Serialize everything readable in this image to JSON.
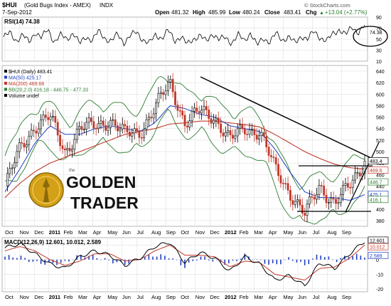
{
  "header": {
    "symbol": "$HUI",
    "name": "(Gold Bugs Index - AMEX)",
    "exchange": "INDX",
    "date": "7-Sep-2012",
    "open_label": "Open",
    "open": "481.32",
    "high_label": "High",
    "high": "485.99",
    "low_label": "Low",
    "low": "480.24",
    "close_label": "Close",
    "close": "483.41",
    "chg_label": "Chg",
    "chg": "+13.04 (+2.77%)",
    "chg_arrow": "▲",
    "watermark": "© StockCharts.com"
  },
  "rsi_panel": {
    "label": "RSI(14) 74.38",
    "ticks": [
      "90",
      "70",
      "50",
      "30",
      "10"
    ],
    "last_value_label": "74.38"
  },
  "price_panel": {
    "legend": [
      {
        "text": "$HUI (Daily) 483.41",
        "color": "#000000"
      },
      {
        "text": "MA(50) 425.17",
        "color": "#1f3fbf"
      },
      {
        "text": "MA(200) 469.68",
        "color": "#c0392b"
      },
      {
        "text": "BB(20,2.0) 416.18 - 446.75 - 477.33",
        "color": "#2e7d32"
      },
      {
        "text": "Volume undef",
        "color": "#000000"
      }
    ],
    "ticks": [
      "640",
      "620",
      "600",
      "580",
      "560",
      "540",
      "520",
      "500",
      "480",
      "460",
      "440",
      "420",
      "400",
      "380"
    ],
    "right_labels": [
      "483.4",
      "469.6",
      "446.7",
      "425.1",
      "416.1"
    ],
    "logo_top": "GOLDEN",
    "logo_bottom": "TRADER",
    "logo_small": "the"
  },
  "macd_panel": {
    "label": "MACD(12,26,9) 12.601, 10.012, 2.589",
    "ticks": [
      "10",
      "0",
      "-10",
      "-20"
    ],
    "right_labels": [
      "12.601",
      "10.012",
      "2.589"
    ]
  },
  "x_axis": {
    "labels": [
      "Oct",
      "Nov",
      "Dec",
      "2011",
      "Feb",
      "Mar",
      "Apr",
      "May",
      "Jun",
      "Jul",
      "Aug",
      "Sep",
      "Oct",
      "Nov",
      "Dec",
      "2012",
      "Feb",
      "Mar",
      "Apr",
      "May",
      "Jun",
      "Jul",
      "Aug",
      "Sep"
    ]
  },
  "colors": {
    "price": "#000000",
    "up_candle": "#000000",
    "down_candle": "#c0392b",
    "ma50": "#1f3fbf",
    "ma200": "#c0392b",
    "bollinger": "#2e7d32",
    "macd": "#000000",
    "signal": "#c0392b",
    "histogram": "#1f3fbf",
    "grid": "#d9d9d9",
    "logo_gold": "#d4a017"
  },
  "chart_data": [
    {
      "type": "line",
      "title": "RSI(14) 74.38",
      "series": [
        {
          "name": "RSI(14)",
          "values": [
            54,
            61,
            47,
            58,
            44,
            63,
            52,
            68,
            45,
            57,
            50,
            62,
            41,
            55,
            48,
            64,
            52,
            46,
            59,
            44,
            56,
            63,
            49,
            42,
            58,
            52,
            66,
            47,
            55,
            40,
            51,
            57,
            45,
            61,
            49,
            53,
            43,
            58,
            47,
            62,
            38,
            52,
            45,
            60,
            48,
            55,
            42,
            56,
            50,
            64,
            53,
            46,
            60,
            68,
            57,
            73,
            62,
            74.38
          ]
        }
      ],
      "ylim": [
        10,
        90
      ]
    },
    {
      "type": "line",
      "title": "$HUI (Daily) 483.41",
      "x": [
        "2010-09",
        "2010-10",
        "2010-11",
        "2010-12",
        "2011-01",
        "2011-02",
        "2011-03",
        "2011-04",
        "2011-05",
        "2011-06",
        "2011-07",
        "2011-08",
        "2011-09",
        "2011-10",
        "2011-11",
        "2011-12",
        "2012-01",
        "2012-02",
        "2012-03",
        "2012-04",
        "2012-05",
        "2012-06",
        "2012-07",
        "2012-08",
        "2012-09"
      ],
      "series": [
        {
          "name": "$HUI (Daily)",
          "values": [
            440,
            505,
            545,
            560,
            500,
            540,
            545,
            555,
            530,
            535,
            575,
            620,
            550,
            570,
            560,
            520,
            540,
            535,
            470,
            430,
            390,
            440,
            410,
            440,
            483.41
          ]
        },
        {
          "name": "MA(50)",
          "values": [
            430,
            470,
            515,
            545,
            530,
            530,
            540,
            545,
            540,
            535,
            550,
            580,
            575,
            565,
            560,
            545,
            540,
            535,
            505,
            465,
            430,
            420,
            420,
            415,
            425.17
          ]
        },
        {
          "name": "MA(200)",
          "values": [
            420,
            445,
            465,
            480,
            490,
            500,
            510,
            520,
            530,
            535,
            540,
            548,
            550,
            553,
            553,
            550,
            547,
            543,
            530,
            515,
            500,
            488,
            478,
            472,
            469.68
          ]
        }
      ],
      "ylim": [
        370,
        640
      ]
    },
    {
      "type": "line",
      "title": "MACD(12,26,9) 12.601, 10.012, 2.589",
      "series": [
        {
          "name": "MACD(12,26,9)",
          "values": [
            8,
            11,
            4,
            -3,
            -6,
            2,
            6,
            3,
            -4,
            1,
            9,
            12,
            -2,
            5,
            1,
            -8,
            2,
            -3,
            -14,
            -11,
            -18,
            -2,
            -6,
            4,
            12.601
          ]
        },
        {
          "name": "Signal",
          "values": [
            6,
            9,
            6,
            0,
            -4,
            -1,
            4,
            4,
            -1,
            0,
            6,
            10,
            3,
            3,
            2,
            -5,
            -1,
            -2,
            -10,
            -12,
            -14,
            -6,
            -5,
            1,
            10.012
          ]
        }
      ],
      "ylim": [
        -22,
        15
      ]
    }
  ]
}
